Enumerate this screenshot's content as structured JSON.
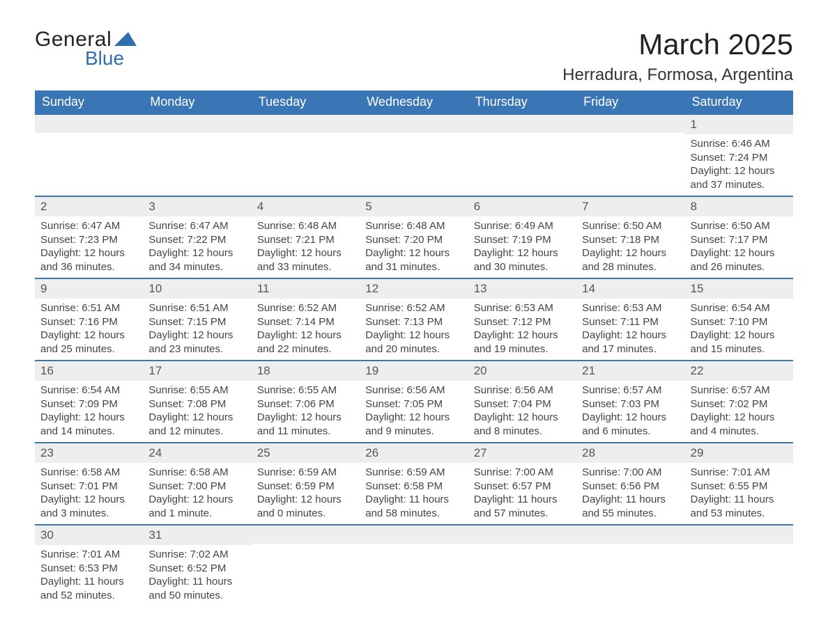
{
  "logo": {
    "text1": "General",
    "text2": "Blue",
    "tri_color": "#2f6fae"
  },
  "header": {
    "month_title": "March 2025",
    "location": "Herradura, Formosa, Argentina"
  },
  "colors": {
    "header_bg": "#3a76b5",
    "header_text": "#ffffff",
    "daynum_bg": "#eeeeee",
    "row_border": "#3a76b5",
    "body_text": "#444444"
  },
  "weekdays": [
    "Sunday",
    "Monday",
    "Tuesday",
    "Wednesday",
    "Thursday",
    "Friday",
    "Saturday"
  ],
  "weeks": [
    [
      null,
      null,
      null,
      null,
      null,
      null,
      {
        "n": "1",
        "sunrise": "Sunrise: 6:46 AM",
        "sunset": "Sunset: 7:24 PM",
        "daylight": "Daylight: 12 hours and 37 minutes."
      }
    ],
    [
      {
        "n": "2",
        "sunrise": "Sunrise: 6:47 AM",
        "sunset": "Sunset: 7:23 PM",
        "daylight": "Daylight: 12 hours and 36 minutes."
      },
      {
        "n": "3",
        "sunrise": "Sunrise: 6:47 AM",
        "sunset": "Sunset: 7:22 PM",
        "daylight": "Daylight: 12 hours and 34 minutes."
      },
      {
        "n": "4",
        "sunrise": "Sunrise: 6:48 AM",
        "sunset": "Sunset: 7:21 PM",
        "daylight": "Daylight: 12 hours and 33 minutes."
      },
      {
        "n": "5",
        "sunrise": "Sunrise: 6:48 AM",
        "sunset": "Sunset: 7:20 PM",
        "daylight": "Daylight: 12 hours and 31 minutes."
      },
      {
        "n": "6",
        "sunrise": "Sunrise: 6:49 AM",
        "sunset": "Sunset: 7:19 PM",
        "daylight": "Daylight: 12 hours and 30 minutes."
      },
      {
        "n": "7",
        "sunrise": "Sunrise: 6:50 AM",
        "sunset": "Sunset: 7:18 PM",
        "daylight": "Daylight: 12 hours and 28 minutes."
      },
      {
        "n": "8",
        "sunrise": "Sunrise: 6:50 AM",
        "sunset": "Sunset: 7:17 PM",
        "daylight": "Daylight: 12 hours and 26 minutes."
      }
    ],
    [
      {
        "n": "9",
        "sunrise": "Sunrise: 6:51 AM",
        "sunset": "Sunset: 7:16 PM",
        "daylight": "Daylight: 12 hours and 25 minutes."
      },
      {
        "n": "10",
        "sunrise": "Sunrise: 6:51 AM",
        "sunset": "Sunset: 7:15 PM",
        "daylight": "Daylight: 12 hours and 23 minutes."
      },
      {
        "n": "11",
        "sunrise": "Sunrise: 6:52 AM",
        "sunset": "Sunset: 7:14 PM",
        "daylight": "Daylight: 12 hours and 22 minutes."
      },
      {
        "n": "12",
        "sunrise": "Sunrise: 6:52 AM",
        "sunset": "Sunset: 7:13 PM",
        "daylight": "Daylight: 12 hours and 20 minutes."
      },
      {
        "n": "13",
        "sunrise": "Sunrise: 6:53 AM",
        "sunset": "Sunset: 7:12 PM",
        "daylight": "Daylight: 12 hours and 19 minutes."
      },
      {
        "n": "14",
        "sunrise": "Sunrise: 6:53 AM",
        "sunset": "Sunset: 7:11 PM",
        "daylight": "Daylight: 12 hours and 17 minutes."
      },
      {
        "n": "15",
        "sunrise": "Sunrise: 6:54 AM",
        "sunset": "Sunset: 7:10 PM",
        "daylight": "Daylight: 12 hours and 15 minutes."
      }
    ],
    [
      {
        "n": "16",
        "sunrise": "Sunrise: 6:54 AM",
        "sunset": "Sunset: 7:09 PM",
        "daylight": "Daylight: 12 hours and 14 minutes."
      },
      {
        "n": "17",
        "sunrise": "Sunrise: 6:55 AM",
        "sunset": "Sunset: 7:08 PM",
        "daylight": "Daylight: 12 hours and 12 minutes."
      },
      {
        "n": "18",
        "sunrise": "Sunrise: 6:55 AM",
        "sunset": "Sunset: 7:06 PM",
        "daylight": "Daylight: 12 hours and 11 minutes."
      },
      {
        "n": "19",
        "sunrise": "Sunrise: 6:56 AM",
        "sunset": "Sunset: 7:05 PM",
        "daylight": "Daylight: 12 hours and 9 minutes."
      },
      {
        "n": "20",
        "sunrise": "Sunrise: 6:56 AM",
        "sunset": "Sunset: 7:04 PM",
        "daylight": "Daylight: 12 hours and 8 minutes."
      },
      {
        "n": "21",
        "sunrise": "Sunrise: 6:57 AM",
        "sunset": "Sunset: 7:03 PM",
        "daylight": "Daylight: 12 hours and 6 minutes."
      },
      {
        "n": "22",
        "sunrise": "Sunrise: 6:57 AM",
        "sunset": "Sunset: 7:02 PM",
        "daylight": "Daylight: 12 hours and 4 minutes."
      }
    ],
    [
      {
        "n": "23",
        "sunrise": "Sunrise: 6:58 AM",
        "sunset": "Sunset: 7:01 PM",
        "daylight": "Daylight: 12 hours and 3 minutes."
      },
      {
        "n": "24",
        "sunrise": "Sunrise: 6:58 AM",
        "sunset": "Sunset: 7:00 PM",
        "daylight": "Daylight: 12 hours and 1 minute."
      },
      {
        "n": "25",
        "sunrise": "Sunrise: 6:59 AM",
        "sunset": "Sunset: 6:59 PM",
        "daylight": "Daylight: 12 hours and 0 minutes."
      },
      {
        "n": "26",
        "sunrise": "Sunrise: 6:59 AM",
        "sunset": "Sunset: 6:58 PM",
        "daylight": "Daylight: 11 hours and 58 minutes."
      },
      {
        "n": "27",
        "sunrise": "Sunrise: 7:00 AM",
        "sunset": "Sunset: 6:57 PM",
        "daylight": "Daylight: 11 hours and 57 minutes."
      },
      {
        "n": "28",
        "sunrise": "Sunrise: 7:00 AM",
        "sunset": "Sunset: 6:56 PM",
        "daylight": "Daylight: 11 hours and 55 minutes."
      },
      {
        "n": "29",
        "sunrise": "Sunrise: 7:01 AM",
        "sunset": "Sunset: 6:55 PM",
        "daylight": "Daylight: 11 hours and 53 minutes."
      }
    ],
    [
      {
        "n": "30",
        "sunrise": "Sunrise: 7:01 AM",
        "sunset": "Sunset: 6:53 PM",
        "daylight": "Daylight: 11 hours and 52 minutes."
      },
      {
        "n": "31",
        "sunrise": "Sunrise: 7:02 AM",
        "sunset": "Sunset: 6:52 PM",
        "daylight": "Daylight: 11 hours and 50 minutes."
      },
      null,
      null,
      null,
      null,
      null
    ]
  ]
}
